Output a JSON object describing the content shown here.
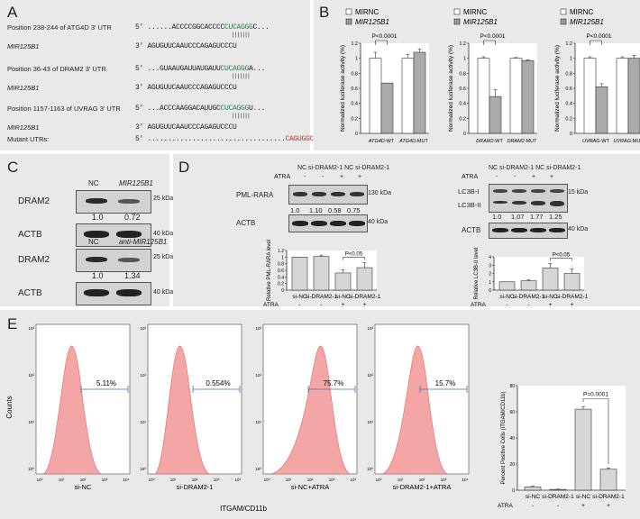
{
  "panelA": {
    "letter": "A",
    "rows": [
      {
        "pos": "Position 238-244 of ATG4D 3' UTR",
        "seq5": "5' ......ACCCCGGCACCCC",
        "seed": "CUCAGGG",
        "tail": "C...",
        "mir": "MIR125B1",
        "seq3": "3'   AGUGUUCAAUCCCAGAGUCCCU"
      },
      {
        "pos": "Position 36-43 of DRAM2 3' UTR",
        "seq5": "5' ...GUAAUGAUUAUGAUU",
        "seed": "CUCAGGG",
        "tail": "A...",
        "mir": "MIR125B1",
        "seq3": "3'   AGUGUUCAAUCCCAGAGUCCCU"
      },
      {
        "pos": "Position 1157-1163 of UVRAG 3' UTR",
        "seq5": "5' ...ACCCAAGGACAUUGC",
        "seed": "CUCAGGG",
        "tail": "U...",
        "mir": "MIR125B1",
        "seq3": "3'   AGUGUUCAAUCCCAGAGUCCCU"
      }
    ],
    "mutant_label": "Mutant UTRs:",
    "mutant_seq5": "5' ..................................",
    "mutant_seed": "CAGUGGC",
    "mutant_tail": "C..."
  },
  "panelB": {
    "letter": "B",
    "legend": [
      "MIRNC",
      "MIR125B1"
    ],
    "ylabel": "Normalized luciferase activity (%)",
    "pval": "P<0.0001"
  },
  "panelC": {
    "letter": "C",
    "top": {
      "lanes": [
        "NC",
        "MIR125B1"
      ],
      "protein": "DRAM2",
      "ratios": [
        "1.0",
        "0.72"
      ],
      "size1": "25 kDa",
      "loading": "ACTB",
      "size2": "40 kDa"
    },
    "bottom": {
      "lanes": [
        "NC",
        "anti-MIR125B1"
      ],
      "protein": "DRAM2",
      "ratios": [
        "1.0",
        "1.34"
      ],
      "size1": "25 kDa",
      "loading": "ACTB",
      "size2": "40 kDa"
    }
  },
  "panelD": {
    "letter": "D",
    "left": {
      "lanes": "NC si-DRAM2-1 NC si-DRAM2-1",
      "atra_label": "ATRA",
      "atra": [
        "-",
        "-",
        "+",
        "+"
      ],
      "protein": "PML-RARA",
      "size1": "130 kDa",
      "ratios": [
        "1.0",
        "1.10",
        "0.58",
        "0.75"
      ],
      "loading": "ACTB",
      "size2": "40 kDa",
      "ylabel": "Relative PML-RARA level",
      "pval": "P<0.05"
    },
    "right": {
      "lanes": "NC si-DRAM2-1 NC si-DRAM2-1",
      "atra_label": "ATRA",
      "atra": [
        "-",
        "-",
        "+",
        "+"
      ],
      "protein1": "LC3B-I",
      "protein2": "LC3B-II",
      "size1": "15 kDa",
      "ratios": [
        "1.0",
        "1.07",
        "1.77",
        "1.25"
      ],
      "loading": "ACTB",
      "size2": "40 kDa",
      "ylabel": "Relative LC3B-II level",
      "pval": "P<0.05"
    },
    "xcats": [
      "si-NC",
      "si-DRAM2-1",
      "si-NC",
      "si-DRAM2-1"
    ],
    "atra_label": "ATRA",
    "atra_row": [
      "-",
      "-",
      "+",
      "+"
    ]
  },
  "panelE": {
    "letter": "E",
    "ylabel": "Counts",
    "xlabel": "ITGAM/CD11b",
    "hist": [
      {
        "pct": "5.11%",
        "label": "si-NC"
      },
      {
        "pct": "0.554%",
        "label": "si-DRAM2-1"
      },
      {
        "pct": "75.7%",
        "label": "si-NC+ATRA"
      },
      {
        "pct": "15.7%",
        "label": "si-DRAM2-1+ATRA"
      }
    ],
    "yticks": [
      "10³",
      "10²",
      "10¹",
      "10⁰"
    ],
    "bar_ylabel": "Percent Positive Cells (ITGAM/CD11b)",
    "pval": "P=0.0001",
    "xcats": [
      "si-NC",
      "si-DRAM2-1",
      "si-NC",
      "si-DRAM2-1"
    ],
    "atra_label": "ATRA",
    "atra_row": [
      "-",
      "-",
      "+",
      "+"
    ]
  },
  "chart_data": [
    {
      "type": "bar",
      "title": "",
      "categories": [
        "ATG4D-WT",
        "ATG4D-MUT"
      ],
      "series": [
        {
          "name": "MIRNC",
          "values": [
            1.0,
            1.0
          ]
        },
        {
          "name": "MIR125B1",
          "values": [
            0.67,
            1.08
          ]
        }
      ],
      "ylim": [
        0,
        1.2
      ],
      "yticks": [
        "0",
        "0.2",
        "0.4",
        "0.6",
        "0.8",
        "1",
        "1.2"
      ],
      "errors": [
        [
          0.08,
          0.05
        ],
        [
          0.0,
          0.04
        ]
      ]
    },
    {
      "type": "bar",
      "title": "",
      "categories": [
        "DRAM2-WT",
        "DRAM2-MUT"
      ],
      "series": [
        {
          "name": "MIRNC",
          "values": [
            1.0,
            1.0
          ]
        },
        {
          "name": "MIR125B1",
          "values": [
            0.49,
            0.97
          ]
        }
      ],
      "ylim": [
        0,
        1.2
      ],
      "yticks": [
        "0",
        "0.2",
        "0.4",
        "0.6",
        "0.8",
        "1",
        "1.2"
      ],
      "errors": [
        [
          0.02,
          0.01
        ],
        [
          0.09,
          0.01
        ]
      ]
    },
    {
      "type": "bar",
      "title": "",
      "categories": [
        "UVRAG-WT",
        "UVRAG-MUT"
      ],
      "series": [
        {
          "name": "MIRNC",
          "values": [
            1.0,
            1.0
          ]
        },
        {
          "name": "MIR125B1",
          "values": [
            0.62,
            1.0
          ]
        }
      ],
      "ylim": [
        0,
        1.2
      ],
      "yticks": [
        "0",
        "0.2",
        "0.4",
        "0.6",
        "0.8",
        "1",
        "1.2"
      ],
      "errors": [
        [
          0.02,
          0.02
        ],
        [
          0.04,
          0.04
        ]
      ]
    },
    {
      "type": "bar",
      "categories": [
        "si-NC",
        "si-DRAM2-1",
        "si-NC",
        "si-DRAM2-1"
      ],
      "values": [
        1.0,
        1.02,
        0.52,
        0.68
      ],
      "errors": [
        0,
        0.04,
        0.1,
        0.15
      ],
      "ylim": [
        0,
        1.2
      ],
      "yticks": [
        "0",
        "0.2",
        "0.4",
        "0.6",
        "0.8",
        "1",
        "1.2"
      ],
      "ylabel": "Relative PML-RARA level"
    },
    {
      "type": "bar",
      "categories": [
        "si-NC",
        "si-DRAM2-1",
        "si-NC",
        "si-DRAM2-1"
      ],
      "values": [
        1.0,
        1.12,
        2.65,
        2.0
      ],
      "errors": [
        0,
        0.15,
        0.55,
        0.55
      ],
      "ylim": [
        0,
        4
      ],
      "yticks": [
        "0",
        "1",
        "2",
        "3",
        "4"
      ],
      "ylabel": "Relative LC3B-II level"
    },
    {
      "type": "bar",
      "categories": [
        "si-NC",
        "si-DRAM2-1",
        "si-NC",
        "si-DRAM2-1"
      ],
      "values": [
        2.5,
        0.6,
        62,
        16
      ],
      "errors": [
        0.5,
        0.2,
        2,
        1
      ],
      "ylim": [
        0,
        80
      ],
      "yticks": [
        "0",
        "20",
        "40",
        "60",
        "80"
      ],
      "ylabel": "Percent Positive Cells (ITGAM/CD11b)"
    }
  ]
}
